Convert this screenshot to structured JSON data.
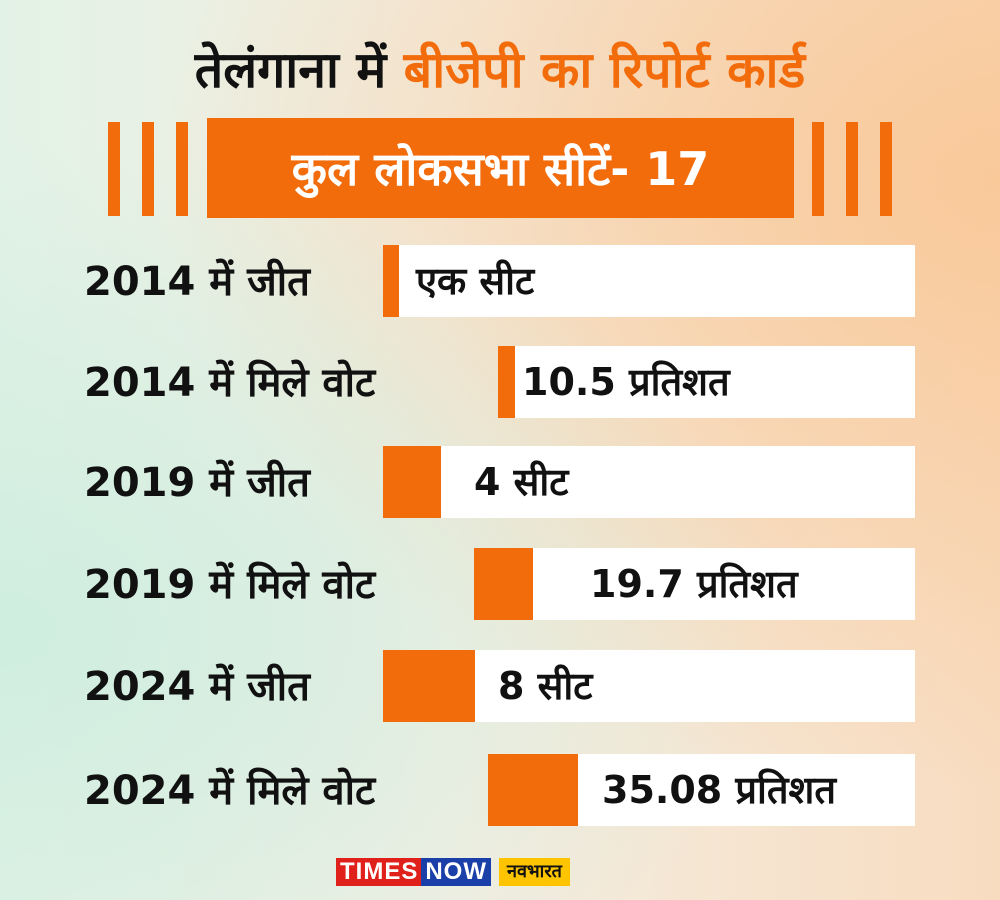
{
  "header": {
    "title_part1": "तेलंगाना में",
    "title_part2": "बीजेपी का रिपोर्ट कार्ड",
    "subtitle": "कुल लोकसभा सीटें- 17"
  },
  "colors": {
    "accent": "#f26c0c",
    "bar_track": "#ffffff",
    "text": "#111111"
  },
  "chart_data": {
    "type": "bar",
    "title": "तेलंगाना में बीजेपी का रिपोर्ट कार्ड",
    "subtitle": "कुल लोकसभा सीटें- 17",
    "rows": [
      {
        "label": "2014 में जीत",
        "value_text": "एक सीट",
        "value": 1,
        "max": 17,
        "unit": "seats"
      },
      {
        "label": "2014 में मिले वोट",
        "value_text": "10.5 प्रतिशत",
        "value": 10.5,
        "max": 100,
        "unit": "percent"
      },
      {
        "label": "2019 में जीत",
        "value_text": "4 सीट",
        "value": 4,
        "max": 17,
        "unit": "seats"
      },
      {
        "label": "2019 में मिले वोट",
        "value_text": "19.7 प्रतिशत",
        "value": 19.7,
        "max": 100,
        "unit": "percent"
      },
      {
        "label": "2024 में जीत",
        "value_text": "8 सीट",
        "value": 8,
        "max": 17,
        "unit": "seats"
      },
      {
        "label": "2024 में मिले वोट",
        "value_text": "35.08 प्रतिशत",
        "value": 35.08,
        "max": 100,
        "unit": "percent"
      }
    ]
  },
  "logo": {
    "times": "TIMES",
    "now": "NOW",
    "navbharat": "नवभारत"
  }
}
